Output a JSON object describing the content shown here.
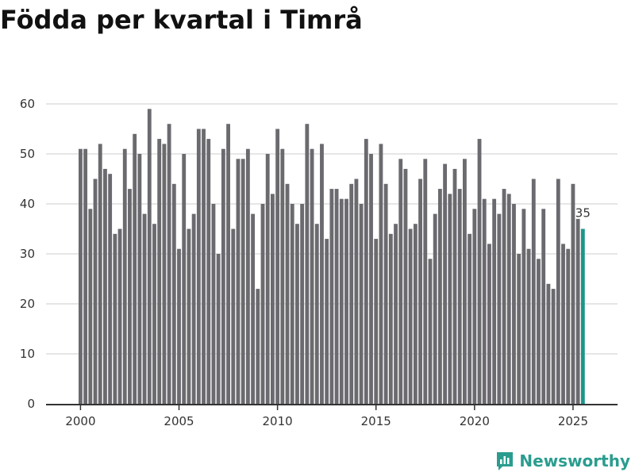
{
  "chart_data": {
    "type": "bar",
    "title": "Födda per kvartal i Timrå",
    "xlabel": "",
    "ylabel": "",
    "ylim": [
      0,
      60
    ],
    "yticks": [
      0,
      10,
      20,
      30,
      40,
      50,
      60
    ],
    "xlim": [
      1999.5,
      2025.97
    ],
    "xticks": [
      2000,
      2005,
      2010,
      2015,
      2020,
      2025
    ],
    "start_year": 2000,
    "values": [
      51,
      51,
      39,
      45,
      52,
      47,
      46,
      34,
      35,
      51,
      43,
      54,
      50,
      38,
      59,
      36,
      53,
      52,
      56,
      44,
      31,
      50,
      35,
      38,
      55,
      55,
      53,
      40,
      30,
      51,
      56,
      35,
      49,
      49,
      51,
      38,
      23,
      40,
      50,
      42,
      55,
      51,
      44,
      40,
      36,
      40,
      56,
      51,
      36,
      52,
      33,
      43,
      43,
      41,
      41,
      44,
      45,
      40,
      53,
      50,
      33,
      52,
      44,
      34,
      36,
      49,
      47,
      35,
      36,
      45,
      49,
      29,
      38,
      43,
      48,
      42,
      47,
      43,
      49,
      34,
      39,
      53,
      41,
      32,
      41,
      38,
      43,
      42,
      40,
      30,
      39,
      31,
      45,
      29,
      39,
      24,
      23,
      45,
      32,
      31,
      44,
      37,
      35
    ],
    "highlight_label": "35",
    "colors": {
      "bar": "#6b6a6f",
      "highlight": "#1c958a",
      "grid": "#dddddd",
      "axis": "#333333"
    }
  },
  "brand": {
    "name": "Newsworthy",
    "color": "#2a9d8f"
  }
}
